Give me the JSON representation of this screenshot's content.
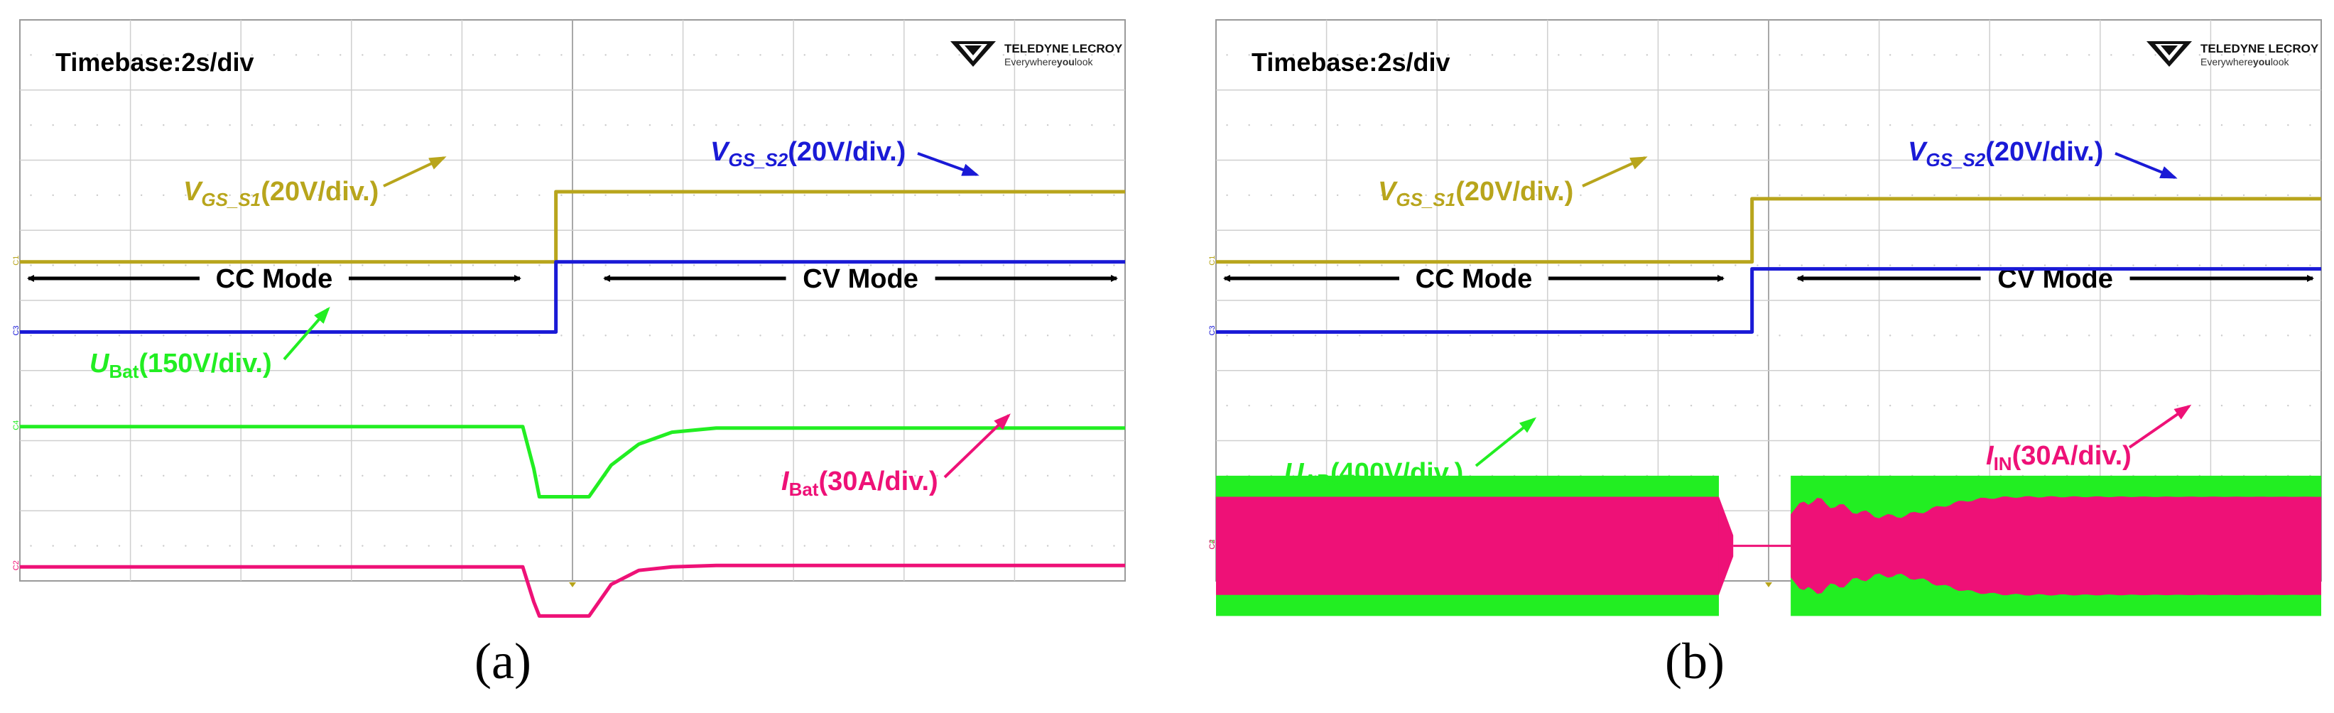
{
  "chart_data": [
    {
      "type": "line",
      "panel_label": "(a)",
      "timebase": "Timebase:2s/div",
      "brand": {
        "name": "TELEDYNE LECROY",
        "tagline_pre": "Everywhere",
        "tagline_you": "you",
        "tagline_post": "look"
      },
      "modes": {
        "left": "CC Mode",
        "right": "CV Mode"
      },
      "divisions": {
        "x": 10,
        "y": 8
      },
      "series": [
        {
          "channel": "C1",
          "color": "#b8a51c",
          "label_main": "V",
          "label_sub": "GS_S1",
          "label_suffix": "(20V/div.)",
          "x": [
            0,
            4.85,
            4.85,
            10
          ],
          "y": [
            0.55,
            0.55,
            1.55,
            1.55
          ]
        },
        {
          "channel": "C3",
          "color": "#1a1ad6",
          "label_main": "V",
          "label_sub": "GS_S2",
          "label_suffix": "(20V/div.)",
          "x": [
            0,
            4.85,
            4.85,
            10
          ],
          "y": [
            -0.45,
            -0.45,
            0.55,
            0.55
          ]
        },
        {
          "channel": "C4",
          "color": "#22ee22",
          "label_main": "U",
          "label_sub": "Bat",
          "label_suffix": "(150V/div.)",
          "x": [
            0,
            4.55,
            4.65,
            4.7,
            5.15,
            5.35,
            5.6,
            5.9,
            6.3,
            10
          ],
          "y": [
            -1.8,
            -1.8,
            -2.4,
            -2.8,
            -2.8,
            -2.35,
            -2.05,
            -1.88,
            -1.82,
            -1.82
          ]
        },
        {
          "channel": "C2",
          "color": "#ee1177",
          "label_main": "I",
          "label_sub": "Bat",
          "label_suffix": "(30A/div.)",
          "x": [
            0,
            4.55,
            4.65,
            4.7,
            5.15,
            5.35,
            5.6,
            5.9,
            6.3,
            10
          ],
          "y": [
            -3.8,
            -3.8,
            -4.3,
            -4.5,
            -4.5,
            -4.05,
            -3.85,
            -3.8,
            -3.78,
            -3.78
          ]
        }
      ]
    },
    {
      "type": "line",
      "panel_label": "(b)",
      "timebase": "Timebase:2s/div",
      "brand": {
        "name": "TELEDYNE LECROY",
        "tagline_pre": "Everywhere",
        "tagline_you": "you",
        "tagline_post": "look"
      },
      "modes": {
        "left": "CC Mode",
        "right": "CV Mode"
      },
      "divisions": {
        "x": 10,
        "y": 8
      },
      "series": [
        {
          "channel": "C1",
          "color": "#b8a51c",
          "label_main": "V",
          "label_sub": "GS_S1",
          "label_suffix": "(20V/div.)",
          "x": [
            0,
            4.85,
            4.85,
            10
          ],
          "y": [
            0.55,
            0.55,
            1.45,
            1.45
          ]
        },
        {
          "channel": "C3",
          "color": "#1a1ad6",
          "label_main": "V",
          "label_sub": "GS_S2",
          "label_suffix": "(20V/div.)",
          "x": [
            0,
            4.85,
            4.85,
            10
          ],
          "y": [
            -0.45,
            -0.45,
            0.45,
            0.45
          ]
        },
        {
          "channel": "C4",
          "color": "#22ee22",
          "label_main": "U",
          "label_sub": "AB",
          "label_suffix": "(400V/div.)",
          "x_cc": [
            0,
            4.55
          ],
          "x_cv": [
            5.2,
            10
          ],
          "y_cc": [
            -2.5,
            -4.5
          ],
          "y_cv": [
            -2.5,
            -4.5
          ]
        },
        {
          "channel": "C2",
          "color": "#ee1177",
          "label_main": "I",
          "label_sub": "IN",
          "label_suffix": "(30A/div.)",
          "x_cc": [
            0,
            4.55
          ],
          "x_cv": [
            5.2,
            10
          ],
          "y_cc": [
            -2.8,
            -4.2
          ],
          "y_cv": [
            -2.8,
            -4.2
          ],
          "y_off": -3.5
        }
      ]
    }
  ]
}
